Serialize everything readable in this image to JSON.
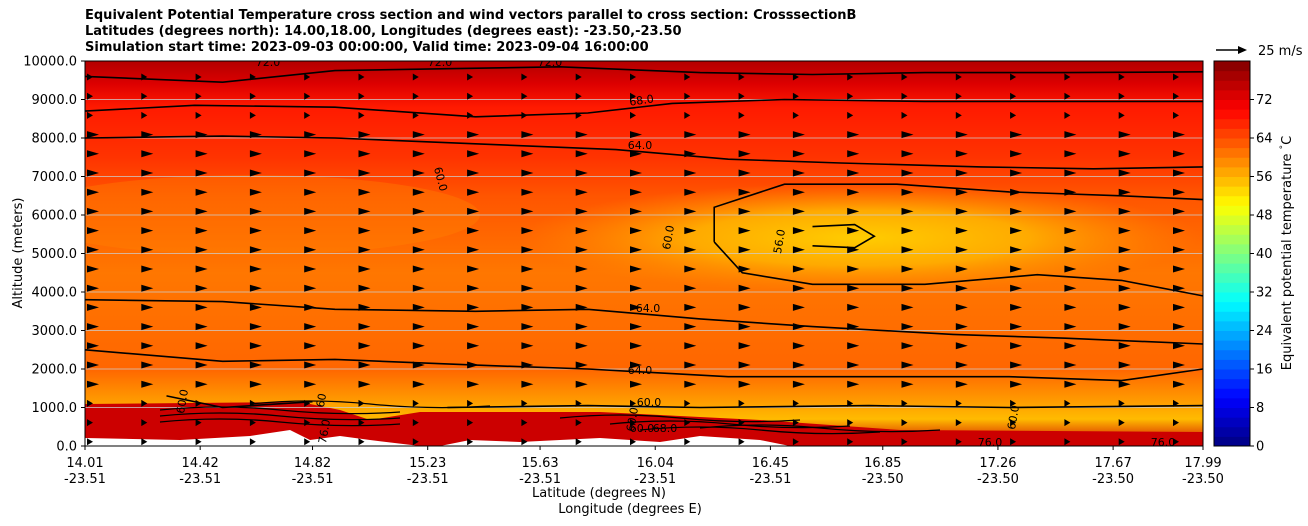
{
  "title_lines": [
    "Equivalent Potential Temperature cross section and wind vectors parallel to cross section: CrosssectionB",
    "Latitudes (degrees north): 14.00,18.00, Longitudes (degrees east): -23.50,-23.50",
    "Simulation start time: 2023-09-03 00:00:00, Valid time: 2023-09-04 16:00:00"
  ],
  "chart_data": {
    "type": "heatmap",
    "subtype": "filled-contour cross section with wind vectors",
    "ylabel": "Altitude (meters)",
    "xlabel_line1": "Latitude (degrees N)",
    "xlabel_line2": "Longitude (degrees E)",
    "ylim": [
      0,
      10000
    ],
    "y_ticks": [
      "0.0",
      "1000.0",
      "2000.0",
      "3000.0",
      "4000.0",
      "5000.0",
      "6000.0",
      "7000.0",
      "8000.0",
      "9000.0",
      "10000.0"
    ],
    "y_tick_values": [
      0,
      1000,
      2000,
      3000,
      4000,
      5000,
      6000,
      7000,
      8000,
      9000,
      10000
    ],
    "x_ticks": [
      {
        "lat": "14.01",
        "lon": "-23.51"
      },
      {
        "lat": "14.42",
        "lon": "-23.51"
      },
      {
        "lat": "14.82",
        "lon": "-23.51"
      },
      {
        "lat": "15.23",
        "lon": "-23.51"
      },
      {
        "lat": "15.63",
        "lon": "-23.51"
      },
      {
        "lat": "16.04",
        "lon": "-23.51"
      },
      {
        "lat": "16.45",
        "lon": "-23.51"
      },
      {
        "lat": "16.85",
        "lon": "-23.50"
      },
      {
        "lat": "17.26",
        "lon": "-23.50"
      },
      {
        "lat": "17.67",
        "lon": "-23.50"
      },
      {
        "lat": "17.99",
        "lon": "-23.50"
      }
    ],
    "x_tick_lat_values": [
      14.01,
      14.42,
      14.82,
      15.23,
      15.63,
      16.04,
      16.45,
      16.85,
      17.26,
      17.67,
      17.99
    ],
    "xlim": [
      14.01,
      17.99
    ],
    "grid": "horizontal",
    "colorbar": {
      "label": "Equivalent potential temperature $^\\circ$C",
      "ticks": [
        "0",
        "8",
        "16",
        "24",
        "32",
        "40",
        "48",
        "56",
        "64",
        "72"
      ],
      "tick_values": [
        0,
        8,
        16,
        24,
        32,
        40,
        48,
        56,
        64,
        72
      ],
      "range": [
        0,
        80
      ],
      "colormap": "jet"
    },
    "quiver_key": {
      "label": "25 m/s",
      "value": 25
    },
    "contour_labels": [
      "72.0",
      "72.0",
      "72.0",
      "68.0",
      "64.0",
      "60.0",
      "60.0",
      "56.0",
      "64.0",
      "64.0",
      "60.0",
      "60.0",
      "60",
      "76.0",
      "60.0",
      "60.0",
      "68.0",
      "76.0",
      "60.0",
      "76.0"
    ],
    "contour_lines": [
      {
        "level": 72,
        "points": [
          [
            14.01,
            9600
          ],
          [
            14.5,
            9450
          ],
          [
            14.9,
            9750
          ],
          [
            15.3,
            9800
          ],
          [
            15.7,
            9850
          ],
          [
            16.2,
            9700
          ],
          [
            16.6,
            9650
          ],
          [
            17.0,
            9700
          ],
          [
            17.5,
            9700
          ],
          [
            17.99,
            9720
          ]
        ]
      },
      {
        "level": 68,
        "points": [
          [
            14.01,
            8700
          ],
          [
            14.4,
            8850
          ],
          [
            14.9,
            8800
          ],
          [
            15.4,
            8550
          ],
          [
            15.8,
            8650
          ],
          [
            16.1,
            8900
          ],
          [
            16.5,
            9000
          ],
          [
            17.0,
            8950
          ],
          [
            17.5,
            8950
          ],
          [
            17.99,
            8950
          ]
        ]
      },
      {
        "level": 64,
        "points": [
          [
            14.01,
            8000
          ],
          [
            14.5,
            8050
          ],
          [
            14.9,
            8000
          ],
          [
            15.4,
            7850
          ],
          [
            15.9,
            7700
          ],
          [
            16.3,
            7450
          ],
          [
            16.7,
            7350
          ],
          [
            17.2,
            7250
          ],
          [
            17.6,
            7200
          ],
          [
            17.99,
            7250
          ]
        ]
      },
      {
        "level": 60,
        "points": [
          [
            16.25,
            5300
          ],
          [
            16.25,
            6200
          ],
          [
            16.5,
            6800
          ],
          [
            16.9,
            6800
          ],
          [
            17.3,
            6600
          ],
          [
            17.7,
            6500
          ],
          [
            17.99,
            6400
          ]
        ]
      },
      {
        "level": 60,
        "points": [
          [
            16.25,
            5300
          ],
          [
            16.35,
            4500
          ],
          [
            16.6,
            4200
          ],
          [
            17.0,
            4200
          ],
          [
            17.4,
            4450
          ],
          [
            17.7,
            4300
          ],
          [
            17.99,
            3900
          ]
        ]
      },
      {
        "level": 56,
        "points": [
          [
            16.6,
            5700
          ],
          [
            16.75,
            5750
          ],
          [
            16.82,
            5450
          ],
          [
            16.75,
            5150
          ],
          [
            16.6,
            5200
          ]
        ]
      },
      {
        "level": 64,
        "points": [
          [
            14.01,
            3800
          ],
          [
            14.5,
            3750
          ],
          [
            14.9,
            3550
          ],
          [
            15.4,
            3500
          ],
          [
            15.8,
            3550
          ],
          [
            16.2,
            3300
          ],
          [
            16.6,
            3100
          ],
          [
            17.1,
            2900
          ],
          [
            17.5,
            2800
          ],
          [
            17.99,
            2650
          ]
        ]
      },
      {
        "level": 64,
        "points": [
          [
            14.01,
            2500
          ],
          [
            14.5,
            2200
          ],
          [
            14.9,
            2250
          ],
          [
            15.4,
            2100
          ],
          [
            15.8,
            2000
          ],
          [
            16.3,
            1800
          ],
          [
            16.8,
            1800
          ],
          [
            17.3,
            1800
          ],
          [
            17.7,
            1700
          ],
          [
            17.99,
            2000
          ]
        ]
      },
      {
        "level": 60,
        "points": [
          [
            14.3,
            1300
          ],
          [
            14.5,
            1000
          ],
          [
            14.82,
            1150
          ]
        ]
      },
      {
        "level": 60,
        "points": [
          [
            15.3,
            1000
          ],
          [
            15.8,
            1050
          ],
          [
            16.2,
            1000
          ],
          [
            16.8,
            1050
          ],
          [
            17.3,
            1000
          ],
          [
            17.99,
            1050
          ]
        ]
      }
    ]
  }
}
